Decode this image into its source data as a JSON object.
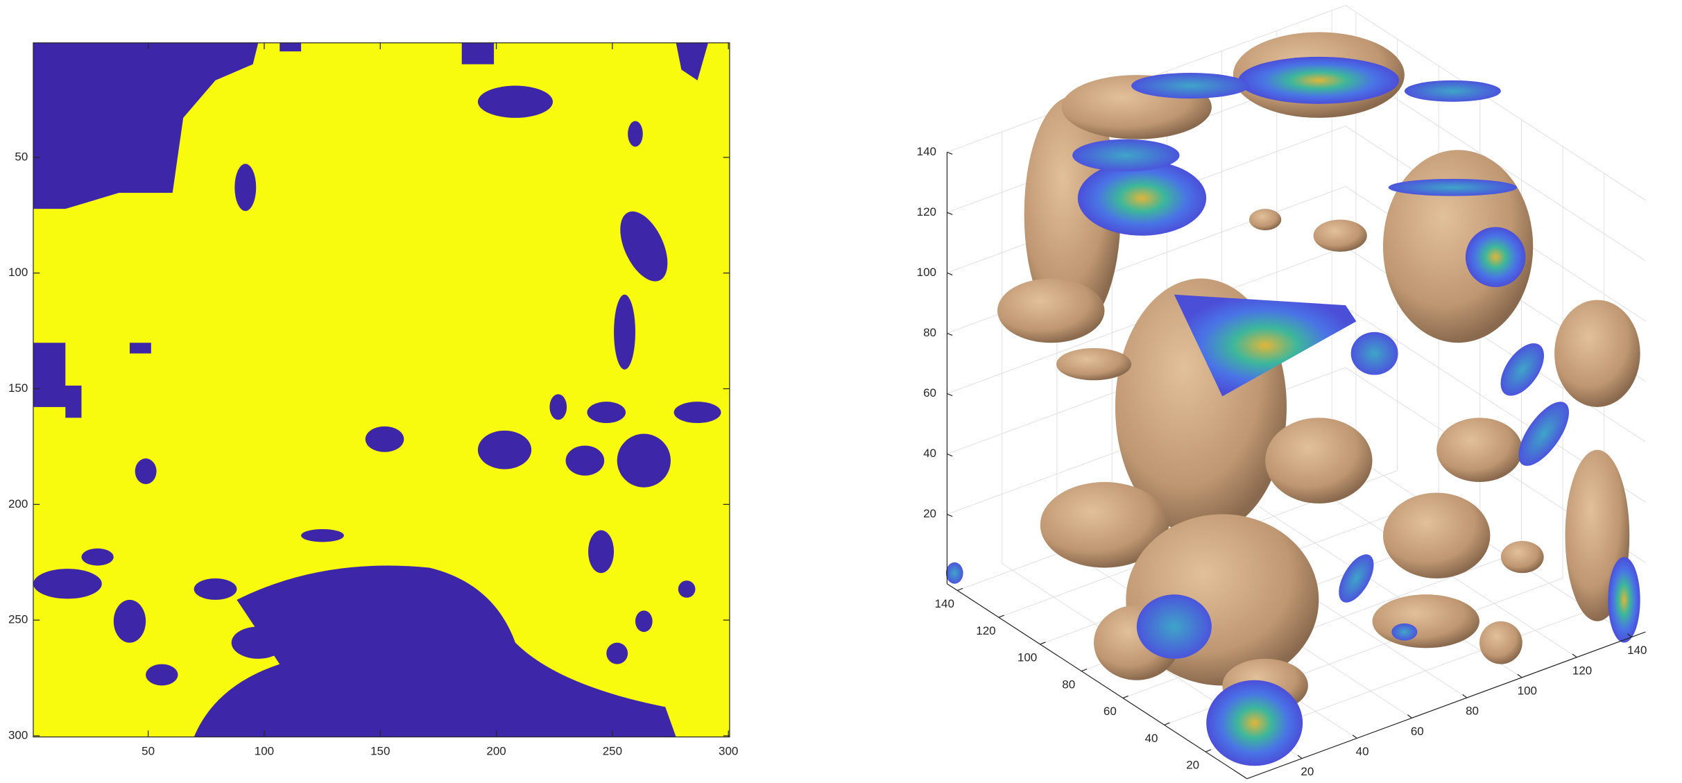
{
  "chart_data": [
    {
      "type": "image",
      "xlim": [
        0.5,
        300.5
      ],
      "ylim": [
        0.5,
        300.5
      ],
      "ydir": "reverse",
      "xticks": [
        50,
        100,
        150,
        200,
        250,
        300
      ],
      "yticks": [
        50,
        100,
        150,
        200,
        250,
        300
      ],
      "colors": [
        "#3e26a8",
        "#f9fb0e"
      ],
      "grid": false
    },
    {
      "type": "isosurface",
      "xlim": [
        0,
        145
      ],
      "ylim": [
        0,
        145
      ],
      "zlim": [
        -3,
        140
      ],
      "xticks": [
        20,
        40,
        60,
        80,
        100,
        120,
        140
      ],
      "yticks": [
        20,
        40,
        60,
        80,
        100,
        120,
        140
      ],
      "zticks": [
        20,
        40,
        60,
        80,
        100,
        120,
        140
      ],
      "colors": [
        "#c8a27c",
        "#4a5fe0"
      ],
      "grid": true
    }
  ]
}
